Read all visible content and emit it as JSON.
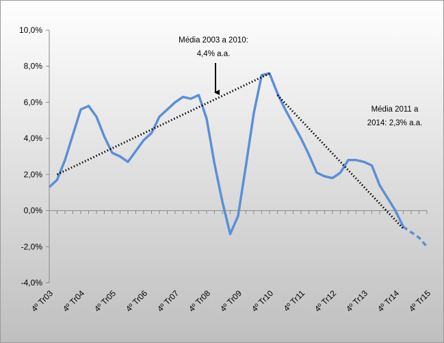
{
  "chart_data": {
    "type": "line",
    "categories": [
      "4º Tr03",
      null,
      null,
      null,
      "4º Tr04",
      null,
      null,
      null,
      "4º Tr05",
      null,
      null,
      null,
      "4º Tr06",
      null,
      null,
      null,
      "4º Tr07",
      null,
      null,
      null,
      "4º Tr08",
      null,
      null,
      null,
      "4º Tr09",
      null,
      null,
      null,
      "4º Tr10",
      null,
      null,
      null,
      "4º Tr11",
      null,
      null,
      null,
      "4º Tr12",
      null,
      null,
      null,
      "4º Tr13",
      null,
      null,
      null,
      "4º Tr14",
      null,
      null,
      null,
      "4º Tr15"
    ],
    "series": [
      {
        "color": "#5b8fd6",
        "dash": false,
        "values": [
          1.3,
          1.7,
          2.8,
          4.2,
          5.6,
          5.8,
          5.2,
          4.1,
          3.2,
          3.0,
          2.7,
          3.3,
          3.9,
          4.3,
          5.2,
          5.6,
          6.0,
          6.3,
          6.2,
          6.4,
          5.1,
          2.6,
          0.5,
          -1.3,
          -0.3,
          2.5,
          5.4,
          7.5,
          7.6,
          6.5,
          5.6,
          4.8,
          4.0,
          3.1,
          2.1,
          1.9,
          1.8,
          2.1,
          2.8,
          2.8,
          2.7,
          2.5,
          1.4,
          0.7,
          0.0,
          -0.9,
          null,
          null,
          null
        ]
      },
      {
        "color": "#5b8fd6",
        "dash": true,
        "values": [
          null,
          null,
          null,
          null,
          null,
          null,
          null,
          null,
          null,
          null,
          null,
          null,
          null,
          null,
          null,
          null,
          null,
          null,
          null,
          null,
          null,
          null,
          null,
          null,
          null,
          null,
          null,
          null,
          null,
          null,
          null,
          null,
          null,
          null,
          null,
          null,
          null,
          null,
          null,
          null,
          null,
          null,
          null,
          null,
          null,
          -0.9,
          -1.2,
          -1.5,
          -2.0
        ]
      }
    ],
    "trend_lines": [
      {
        "points": [
          [
            1,
            2.0
          ],
          [
            28,
            7.6
          ]
        ]
      },
      {
        "points": [
          [
            29,
            6.4
          ],
          [
            45,
            -1.0
          ]
        ]
      }
    ],
    "annotations": [
      {
        "lines": [
          "Média 2003 a 2010:",
          "4,4% a.a."
        ]
      },
      {
        "lines": [
          "Média 2011 a",
          "2014: 2,3% a.a."
        ]
      }
    ],
    "ylim": [
      -4,
      10
    ],
    "yticks": [
      {
        "value": -4,
        "label": "-4,0%"
      },
      {
        "value": -2,
        "label": "-2,0%"
      },
      {
        "value": 0,
        "label": "0,0%"
      },
      {
        "value": 2,
        "label": "2,0%"
      },
      {
        "value": 4,
        "label": "4,0%"
      },
      {
        "value": 6,
        "label": "6,0%"
      },
      {
        "value": 8,
        "label": "8,0%"
      },
      {
        "value": 10,
        "label": "10,0%"
      }
    ]
  }
}
